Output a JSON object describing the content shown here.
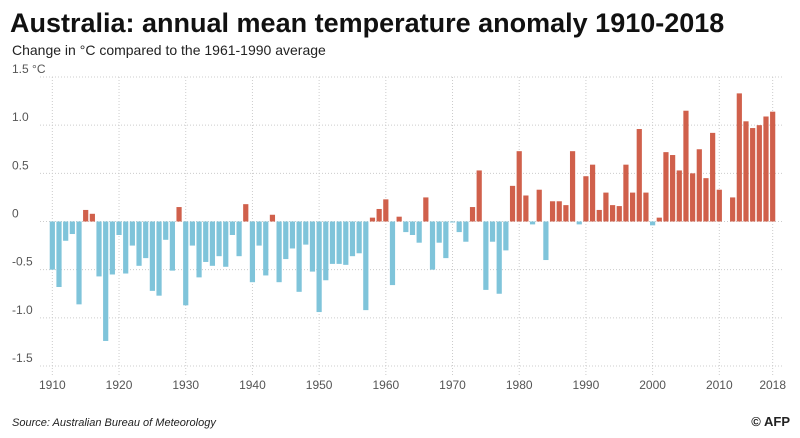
{
  "chart_data": {
    "type": "bar",
    "title": "Australia: annual mean temperature anomaly 1910-2018",
    "subtitle": "Change in °C compared to the 1961-1990 average",
    "source": "Source: Australian Bureau of Meteorology",
    "credit": "© AFP",
    "x": [
      1910,
      1911,
      1912,
      1913,
      1914,
      1915,
      1916,
      1917,
      1918,
      1919,
      1920,
      1921,
      1922,
      1923,
      1924,
      1925,
      1926,
      1927,
      1928,
      1929,
      1930,
      1931,
      1932,
      1933,
      1934,
      1935,
      1936,
      1937,
      1938,
      1939,
      1940,
      1941,
      1942,
      1943,
      1944,
      1945,
      1946,
      1947,
      1948,
      1949,
      1950,
      1951,
      1952,
      1953,
      1954,
      1955,
      1956,
      1957,
      1958,
      1959,
      1960,
      1961,
      1962,
      1963,
      1964,
      1965,
      1966,
      1967,
      1968,
      1969,
      1970,
      1971,
      1972,
      1973,
      1974,
      1975,
      1976,
      1977,
      1978,
      1979,
      1980,
      1981,
      1982,
      1983,
      1984,
      1985,
      1986,
      1987,
      1988,
      1989,
      1990,
      1991,
      1992,
      1993,
      1994,
      1995,
      1996,
      1997,
      1998,
      1999,
      2000,
      2001,
      2002,
      2003,
      2004,
      2005,
      2006,
      2007,
      2008,
      2009,
      2010,
      2011,
      2012,
      2013,
      2014,
      2015,
      2016,
      2017,
      2018
    ],
    "values": [
      -0.5,
      -0.68,
      -0.2,
      -0.13,
      -0.86,
      0.12,
      0.08,
      -0.57,
      -1.24,
      -0.55,
      -0.14,
      -0.54,
      -0.25,
      -0.46,
      -0.38,
      -0.72,
      -0.77,
      -0.19,
      -0.51,
      0.15,
      -0.87,
      -0.25,
      -0.58,
      -0.42,
      -0.46,
      -0.36,
      -0.47,
      -0.14,
      -0.36,
      0.18,
      -0.63,
      -0.25,
      -0.56,
      0.07,
      -0.63,
      -0.39,
      -0.28,
      -0.73,
      -0.24,
      -0.52,
      -0.94,
      -0.61,
      -0.44,
      -0.44,
      -0.45,
      -0.36,
      -0.33,
      -0.92,
      0.04,
      0.13,
      0.23,
      -0.66,
      0.05,
      -0.11,
      -0.14,
      -0.22,
      0.25,
      -0.5,
      -0.22,
      -0.38,
      -0.01,
      -0.11,
      -0.21,
      0.15,
      0.53,
      -0.71,
      -0.21,
      -0.75,
      -0.3,
      0.37,
      0.73,
      0.27,
      -0.03,
      0.33,
      -0.4,
      0.21,
      0.21,
      0.17,
      0.73,
      -0.03,
      0.47,
      0.59,
      0.12,
      0.3,
      0.17,
      0.16,
      0.59,
      0.3,
      0.96,
      0.3,
      -0.04,
      0.04,
      0.72,
      0.69,
      0.53,
      1.15,
      0.5,
      0.75,
      0.45,
      0.92,
      0.33,
      0.0,
      0.25,
      1.33,
      1.04,
      0.97,
      1.0,
      1.09,
      1.14
    ],
    "positive_color": "#d0604b",
    "negative_color": "#7fc4da",
    "xlim": [
      1909.5,
      2018.5
    ],
    "xticks": [
      1910,
      1920,
      1930,
      1940,
      1950,
      1960,
      1970,
      1980,
      1990,
      2000,
      2010,
      2018
    ],
    "ylim": [
      -1.5,
      1.5
    ],
    "yticks": [
      {
        "value": 1.5,
        "label": "1.5 °C"
      },
      {
        "value": 1.0,
        "label": "1.0"
      },
      0.5,
      0,
      -0.5,
      {
        "value": -1.0,
        "label": "-1.0"
      },
      -1.5
    ],
    "grid": true
  }
}
